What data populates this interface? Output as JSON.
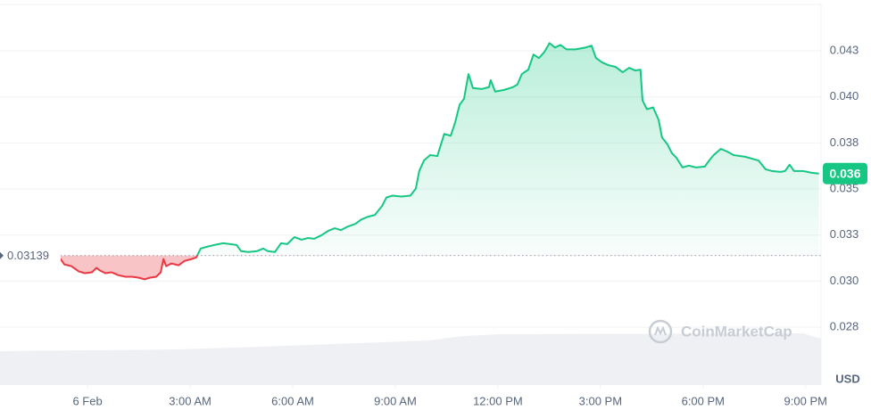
{
  "chart_data": {
    "type": "line",
    "x": [
      -0.86,
      -0.68,
      -0.47,
      -0.26,
      -0.08,
      0.13,
      0.26,
      0.37,
      0.52,
      0.7,
      0.89,
      1.1,
      1.3,
      1.49,
      1.67,
      1.83,
      2.01,
      2.14,
      2.22,
      2.3,
      2.45,
      2.66,
      2.84,
      3.05,
      3.18,
      3.31,
      3.5,
      3.7,
      3.97,
      4.17,
      4.36,
      4.49,
      4.7,
      4.96,
      5.14,
      5.27,
      5.48,
      5.66,
      5.84,
      6.05,
      6.26,
      6.44,
      6.63,
      6.84,
      7.04,
      7.23,
      7.41,
      7.62,
      7.83,
      8.01,
      8.19,
      8.4,
      8.61,
      8.74,
      8.92,
      9.18,
      9.44,
      9.6,
      9.7,
      9.84,
      10.02,
      10.23,
      10.43,
      10.62,
      10.75,
      10.88,
      11.01,
      11.14,
      11.27,
      11.53,
      11.74,
      11.79,
      11.92,
      12.18,
      12.44,
      12.57,
      12.7,
      12.89,
      13.04,
      13.2,
      13.36,
      13.51,
      13.67,
      13.83,
      14.01,
      14.27,
      14.56,
      14.74,
      14.87,
      15.05,
      15.24,
      15.44,
      15.65,
      15.84,
      16.02,
      16.17,
      16.23,
      16.36,
      16.54,
      16.7,
      16.8,
      16.96,
      17.09,
      17.22,
      17.4,
      17.58,
      17.79,
      18.05,
      18.18,
      18.31,
      18.52,
      18.71,
      18.89,
      19.23,
      19.62,
      19.83,
      20.01,
      20.27,
      20.4,
      20.53,
      20.66,
      20.92,
      21.18,
      21.39
    ],
    "values": [
      0.03139,
      0.03091,
      0.03081,
      0.03053,
      0.03043,
      0.03048,
      0.03072,
      0.03057,
      0.03043,
      0.03048,
      0.03033,
      0.03024,
      0.03024,
      0.03019,
      0.0301,
      0.03019,
      0.03024,
      0.03048,
      0.0312,
      0.03081,
      0.03096,
      0.03086,
      0.0311,
      0.0312,
      0.03129,
      0.03177,
      0.03187,
      0.03196,
      0.03206,
      0.03201,
      0.03196,
      0.03163,
      0.03158,
      0.03163,
      0.03177,
      0.03163,
      0.03158,
      0.03206,
      0.03201,
      0.03239,
      0.03225,
      0.03234,
      0.0323,
      0.03249,
      0.03273,
      0.03287,
      0.03277,
      0.03297,
      0.03311,
      0.03335,
      0.03349,
      0.03359,
      0.03407,
      0.03454,
      0.03464,
      0.03459,
      0.03464,
      0.03502,
      0.03598,
      0.03655,
      0.03684,
      0.03679,
      0.03799,
      0.03789,
      0.03861,
      0.03957,
      0.0399,
      0.04124,
      0.04048,
      0.04043,
      0.04053,
      0.04091,
      0.04029,
      0.04038,
      0.04053,
      0.04067,
      0.04124,
      0.04148,
      0.0423,
      0.04211,
      0.04244,
      0.04292,
      0.04268,
      0.04282,
      0.04258,
      0.04258,
      0.04268,
      0.04278,
      0.04211,
      0.04187,
      0.04172,
      0.04163,
      0.04134,
      0.04158,
      0.04143,
      0.04148,
      0.03981,
      0.03933,
      0.03943,
      0.03876,
      0.0378,
      0.03742,
      0.03694,
      0.0367,
      0.03617,
      0.03627,
      0.03617,
      0.03622,
      0.03655,
      0.03684,
      0.03718,
      0.03703,
      0.03684,
      0.03675,
      0.03655,
      0.03607,
      0.03598,
      0.03593,
      0.03598,
      0.03632,
      0.03598,
      0.03598,
      0.03588,
      0.03584
    ],
    "up_color": "#16c784",
    "down_color": "#ea3943",
    "baseline": 0.03139,
    "current_label": "0.036",
    "xlim": [
      -2.56,
      21.45
    ],
    "xticks": [
      {
        "value": 0,
        "label": "6 Feb"
      },
      {
        "value": 3,
        "label": "3:00 AM"
      },
      {
        "value": 6,
        "label": "6:00 AM"
      },
      {
        "value": 9,
        "label": "9:00 AM"
      },
      {
        "value": 12,
        "label": "12:00 PM"
      },
      {
        "value": 15,
        "label": "3:00 PM"
      },
      {
        "value": 18,
        "label": "6:00 PM"
      },
      {
        "value": 21,
        "label": "9:00 PM"
      }
    ],
    "ylim": [
      0.02436,
      0.04526
    ],
    "yticks": [
      {
        "value": 0.0275,
        "label": "0.028"
      },
      {
        "value": 0.03,
        "label": "0.030"
      },
      {
        "value": 0.0325,
        "label": "0.033"
      },
      {
        "value": 0.035,
        "label": "0.035"
      },
      {
        "value": 0.0375,
        "label": "0.038"
      },
      {
        "value": 0.04,
        "label": "0.040"
      },
      {
        "value": 0.0425,
        "label": "0.043"
      }
    ],
    "grid": true,
    "unit": "USD",
    "watermark": "CoinMarketCap"
  }
}
